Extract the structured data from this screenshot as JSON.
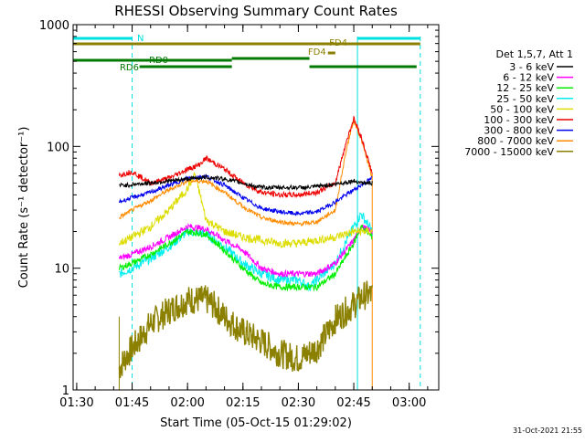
{
  "chart_data": {
    "type": "line",
    "title": "RHESSI Observing Summary Count Rates",
    "xlabel": "Start Time (05-Oct-15 01:29:02)",
    "ylabel": "Count Rate (s⁻¹ detector⁻¹)",
    "y_scale": "log",
    "ylim": [
      1,
      1000
    ],
    "xlim": [
      "01:29:02",
      "03:08:00"
    ],
    "x_ticks": [
      "01:30",
      "01:45",
      "02:00",
      "02:15",
      "02:30",
      "02:45",
      "03:00"
    ],
    "y_ticks": [
      "1",
      "10",
      "100",
      "1000"
    ],
    "legend_header": "Det 1,5,7, Att 1",
    "legend_position": "right",
    "timestamp": "31-Oct-2021 21:55",
    "series": [
      {
        "name": "3 - 6 keV",
        "color": "#000000",
        "x": [
          "01:41:30",
          "01:44",
          "01:46",
          "01:50",
          "01:55",
          "02:00",
          "02:05",
          "02:10",
          "02:15",
          "02:18",
          "02:20",
          "02:25",
          "02:30",
          "02:33",
          "02:35",
          "02:40",
          "02:45",
          "02:48",
          "02:50"
        ],
        "y": [
          48,
          48,
          49,
          50,
          52,
          54,
          56,
          54,
          50,
          47,
          46,
          46,
          46,
          46,
          47,
          49,
          52,
          50,
          50
        ]
      },
      {
        "name": "6 - 12 keV",
        "color": "#ff00ff",
        "x": [
          "01:41:30",
          "01:45",
          "01:50",
          "01:55",
          "02:00",
          "02:05",
          "02:10",
          "02:15",
          "02:20",
          "02:25",
          "02:30",
          "02:35",
          "02:40",
          "02:45",
          "02:47",
          "02:50"
        ],
        "y": [
          12,
          13,
          15,
          18,
          22,
          21,
          17,
          14,
          10,
          9,
          9,
          9,
          11,
          17,
          22,
          20
        ]
      },
      {
        "name": "12 - 25 keV",
        "color": "#00ee00",
        "x": [
          "01:41:30",
          "01:45",
          "01:50",
          "01:55",
          "02:00",
          "02:05",
          "02:10",
          "02:15",
          "02:20",
          "02:25",
          "02:30",
          "02:35",
          "02:40",
          "02:45",
          "02:47",
          "02:50"
        ],
        "y": [
          10,
          11,
          13,
          16,
          20,
          19,
          14,
          10,
          7.5,
          7,
          7,
          7,
          9,
          16,
          22,
          18
        ]
      },
      {
        "name": "25 - 50 keV",
        "color": "#00eeee",
        "x": [
          "01:41:30",
          "01:45",
          "01:50",
          "01:55",
          "02:00",
          "02:05",
          "02:10",
          "02:15",
          "02:20",
          "02:25",
          "02:30",
          "02:33",
          "02:35",
          "02:40",
          "02:45",
          "02:47",
          "02:50"
        ],
        "y": [
          9,
          10,
          12,
          15,
          20,
          19,
          15,
          11,
          9,
          8,
          8,
          7,
          8,
          11,
          22,
          28,
          20
        ]
      },
      {
        "name": "50 - 100 keV",
        "color": "#dddd00",
        "x": [
          "01:41:30",
          "01:45",
          "01:50",
          "01:55",
          "02:00",
          "02:02",
          "02:05",
          "02:10",
          "02:15",
          "02:20",
          "02:25",
          "02:30",
          "02:35",
          "02:40",
          "02:45",
          "02:50"
        ],
        "y": [
          16,
          18,
          22,
          30,
          45,
          60,
          25,
          20,
          18,
          17,
          16,
          16,
          17,
          18,
          20,
          20
        ]
      },
      {
        "name": "100 - 300 keV",
        "color": "#ee0000",
        "x": [
          "01:41:30",
          "01:45",
          "01:50",
          "01:55",
          "02:00",
          "02:03",
          "02:05",
          "02:10",
          "02:15",
          "02:20",
          "02:25",
          "02:30",
          "02:35",
          "02:40",
          "02:43",
          "02:45",
          "02:47",
          "02:50"
        ],
        "y": [
          58,
          62,
          50,
          55,
          65,
          70,
          80,
          65,
          50,
          42,
          40,
          40,
          42,
          50,
          110,
          170,
          120,
          60
        ]
      },
      {
        "name": "300 - 800 keV",
        "color": "#0000ee",
        "x": [
          "01:41:30",
          "01:45",
          "01:50",
          "01:55",
          "02:00",
          "02:05",
          "02:10",
          "02:15",
          "02:20",
          "02:25",
          "02:30",
          "02:35",
          "02:40",
          "02:45",
          "02:50"
        ],
        "y": [
          35,
          38,
          42,
          48,
          55,
          57,
          48,
          38,
          31,
          29,
          28,
          29,
          35,
          44,
          55
        ]
      },
      {
        "name": "800 - 7000 keV",
        "color": "#ff8c00",
        "x": [
          "01:41:30",
          "01:45",
          "01:50",
          "01:55",
          "02:00",
          "02:05",
          "02:10",
          "02:15",
          "02:20",
          "02:25",
          "02:30",
          "02:35",
          "02:40",
          "02:43",
          "02:45",
          "02:47",
          "02:50"
        ],
        "y": [
          26,
          30,
          36,
          44,
          52,
          52,
          42,
          32,
          26,
          24,
          23,
          24,
          30,
          95,
          165,
          115,
          55
        ]
      },
      {
        "name": "7000 - 15000 keV",
        "color": "#8b8000",
        "x": [
          "01:41:30",
          "01:43",
          "01:45",
          "01:47",
          "01:50",
          "01:55",
          "02:00",
          "02:05",
          "02:07",
          "02:10",
          "02:15",
          "02:20",
          "02:25",
          "02:30",
          "02:35",
          "02:38",
          "02:40",
          "02:45",
          "02:48",
          "02:50"
        ],
        "y": [
          1.5,
          1.8,
          2.2,
          2.6,
          3.5,
          4.5,
          5.5,
          5.5,
          5,
          4,
          3,
          2.5,
          2,
          1.8,
          2.2,
          3,
          3.8,
          5,
          6,
          6
        ]
      }
    ],
    "cyan_bars": [
      {
        "label": "N",
        "start": "01:29:02",
        "end": "01:45:00"
      },
      {
        "label": "",
        "start": "02:46:00",
        "end": "03:03:00"
      }
    ],
    "olive_bars": [
      {
        "label": "FD4",
        "start": "01:29:02",
        "end": "03:03:00"
      },
      {
        "label": "FD4",
        "start": "02:38:00",
        "end": "02:40:00"
      }
    ],
    "green_bars": [
      {
        "label": "RD0",
        "start": "01:29:02",
        "end": "02:12:00"
      },
      {
        "label": "RD6",
        "start": "01:47:00",
        "end": "02:12:00"
      },
      {
        "label": "",
        "start": "02:12:00",
        "end": "02:33:00"
      },
      {
        "label": "",
        "start": "02:33:00",
        "end": "03:02:00"
      }
    ],
    "cyan_vlines": [
      "01:45:00",
      "03:03:00"
    ],
    "cyan_solid_vline": "02:46:00",
    "orange_vline": "02:50:00",
    "olive_vline": "01:41:30"
  }
}
